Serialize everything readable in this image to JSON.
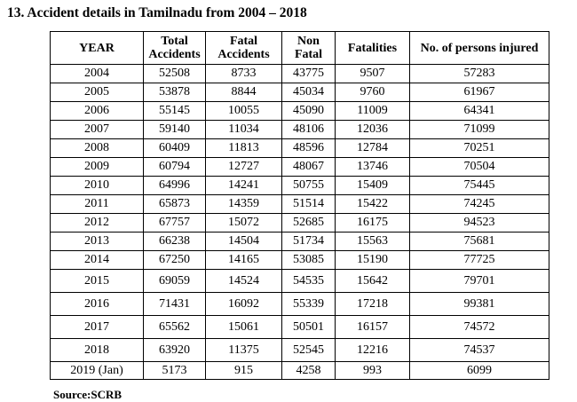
{
  "title": "13. Accident details in Tamilnadu from 2004 – 2018",
  "columns": [
    "YEAR",
    "Total Accidents",
    "Fatal Accidents",
    "Non Fatal",
    "Fatalities",
    "No. of persons injured"
  ],
  "rows": [
    [
      "2004",
      "52508",
      "8733",
      "43775",
      "9507",
      "57283"
    ],
    [
      "2005",
      "53878",
      "8844",
      "45034",
      "9760",
      "61967"
    ],
    [
      "2006",
      "55145",
      "10055",
      "45090",
      "11009",
      "64341"
    ],
    [
      "2007",
      "59140",
      "11034",
      "48106",
      "12036",
      "71099"
    ],
    [
      "2008",
      "60409",
      "11813",
      "48596",
      "12784",
      "70251"
    ],
    [
      "2009",
      "60794",
      "12727",
      "48067",
      "13746",
      "70504"
    ],
    [
      "2010",
      "64996",
      "14241",
      "50755",
      "15409",
      "75445"
    ],
    [
      "2011",
      "65873",
      "14359",
      "51514",
      "15422",
      "74245"
    ],
    [
      "2012",
      "67757",
      "15072",
      "52685",
      "16175",
      "94523"
    ],
    [
      "2013",
      "66238",
      "14504",
      "51734",
      "15563",
      "75681"
    ],
    [
      "2014",
      "67250",
      "14165",
      "53085",
      "15190",
      "77725"
    ],
    [
      "2015",
      "69059",
      "14524",
      "54535",
      "15642",
      "79701"
    ],
    [
      "2016",
      "71431",
      "16092",
      "55339",
      "17218",
      "99381"
    ],
    [
      "2017",
      "65562",
      "15061",
      "50501",
      "16157",
      "74572"
    ],
    [
      "2018",
      "63920",
      "11375",
      "52545",
      "12216",
      "74537"
    ],
    [
      "2019 (Jan)",
      "5173",
      "915",
      "4258",
      "993",
      "6099"
    ]
  ],
  "source": "Source:SCRB"
}
